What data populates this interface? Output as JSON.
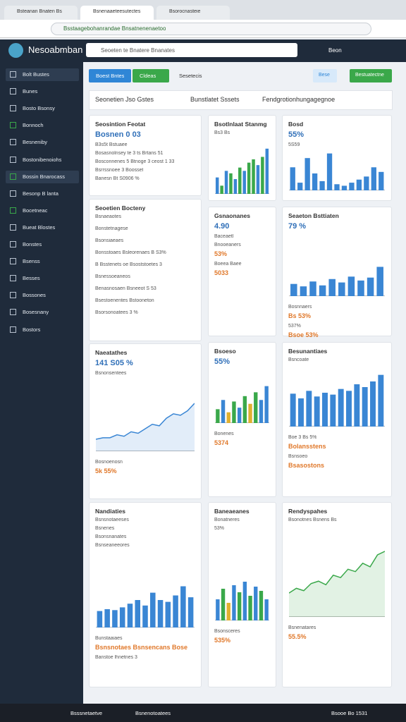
{
  "browser": {
    "tabs": [
      "Bsteanan Bnaten Bs",
      "Bsnenaaeteesutectes",
      "Bsorocnasteie"
    ],
    "url": "Bsstaagebohanrandae Bnsatnenenaetoo"
  },
  "header": {
    "brand": "Nesoabmban",
    "search": "Seoeten te Bnatere Bnanates",
    "user": "Beon"
  },
  "sidebar": [
    "Bolt Bustes",
    "Bunes",
    "Bosto Bsonsy",
    "Bonnoch",
    "Besneniby",
    "Bostonibenoiohs",
    "Bossin Bnarocass",
    "Besonp B lanta",
    "Bocetneac",
    "Bueat Blostes",
    "Bonstes",
    "Bsenss",
    "Besses",
    "Bossones",
    "Bosesnany",
    "Bostors"
  ],
  "toolbar": {
    "buttons": [
      "Boest Bntes",
      "Cldeas"
    ],
    "link": "Sesetecis",
    "right": [
      "Bese",
      "Bestuatectne"
    ]
  },
  "tabs": [
    "Seonetien Jso Gstes",
    "Bunstlatet Sssets",
    "Fendgrotionhungagegnoe"
  ],
  "cards": [
    {
      "title": "Seosintion Feotat",
      "value": "Bosnen 0 03",
      "lines": [
        "B3s5t  Bstuaee",
        "Bosasnolnsey te 3 ts Brtans 51",
        "Bosconnenes 5 Btnoge 3 ceost 1 33",
        "Bsrrssnoee 3 Boosset",
        "Banesn Bt S0906 %"
      ]
    },
    {
      "title": "Seoetien Bocteny",
      "lines": [
        "Bsnaeaotes",
        "Bonstetnagese",
        "Bsonsiaeaes",
        "Bonsstoaes Bsleorenaes B S3%",
        "B Bsstenets oe Bsoststoetes 3",
        "Bsnessoeaneos",
        "Benasnosaen Bsneeot S 53",
        "Bsestoenentes Bstooneton",
        "Bsorsonoatees 3 %"
      ]
    },
    {
      "title": "Naeatathes",
      "value": "141 S05 %",
      "lines": [
        "Bsnonsentees"
      ],
      "chart": {
        "type": "line",
        "values": [
          8,
          9,
          9,
          11,
          10,
          13,
          12,
          15,
          18,
          17,
          22,
          25,
          24,
          27,
          32
        ],
        "ylim": [
          0,
          40
        ],
        "color": "#3a86d4"
      },
      "footer": [
        "Bosnoenosn",
        "5k 55%"
      ]
    },
    {
      "title": "Nandiaties",
      "lines": [
        "Bsnsnotaeeses",
        "Bsnenes",
        "Bsonsnanates",
        "Bsnseaneeores"
      ],
      "chart": {
        "type": "bar",
        "values": [
          18,
          20,
          19,
          22,
          26,
          30,
          24,
          38,
          30,
          28,
          35,
          45,
          33
        ],
        "ylim": [
          0,
          50
        ],
        "color": "#3a86d4"
      },
      "footer": [
        "Bunstaaiaes",
        "Bsnsnotaes Bsnsencans Bose",
        "Banstoe lhnetnes 3"
      ]
    },
    {
      "title": "Bsotlnlaat Stanmg",
      "lines": [
        "Bs3 Bs"
      ],
      "chart": {
        "type": "bar",
        "values": [
          20,
          10,
          28,
          25,
          18,
          32,
          28,
          38,
          42,
          35,
          45,
          55
        ],
        "ylim": [
          0,
          60
        ],
        "colors": [
          "#3a86d4",
          "#3aa84a",
          "#3a86d4",
          "#3aa84a",
          "#3a86d4",
          "#3aa84a",
          "#3a86d4",
          "#3aa84a",
          "#3aa84a",
          "#3a86d4",
          "#3aa84a",
          "#3a86d4"
        ]
      }
    },
    {
      "title": "Gsnaonanes",
      "value": "4.90",
      "lines": [
        "Baceaetl"
      ],
      "footer": [
        "Bnooeaners",
        "53%",
        "Boeea Baee",
        "5033"
      ]
    },
    {
      "title": "Bsoeso",
      "value": "55%",
      "chart": {
        "type": "bar",
        "values": [
          18,
          30,
          14,
          28,
          20,
          35,
          25,
          40,
          30,
          48
        ],
        "ylim": [
          0,
          55
        ],
        "colors": [
          "#3aa84a",
          "#3a86d4",
          "#e0b030",
          "#3aa84a",
          "#3a86d4",
          "#3aa84a",
          "#e0b030",
          "#3aa84a",
          "#3a86d4",
          "#3a86d4"
        ]
      },
      "footer": [
        "Bonenes",
        "5374"
      ]
    },
    {
      "title": "Baneaeanes",
      "lines": [
        "Bonatneres",
        "53%"
      ],
      "chart": {
        "type": "bar",
        "values": [
          30,
          45,
          25,
          50,
          40,
          55,
          35,
          48,
          42,
          30
        ],
        "ylim": [
          0,
          60
        ],
        "colors": [
          "#3a86d4",
          "#3aa84a",
          "#e0b030",
          "#3a86d4",
          "#3aa84a",
          "#3a86d4",
          "#3aa84a",
          "#3a86d4",
          "#3aa84a",
          "#3a86d4"
        ]
      },
      "footer": [
        "Bsonsceres",
        "535%"
      ]
    },
    {
      "title": "Bosd",
      "value": "55%",
      "lines": [
        "5S59"
      ],
      "chart": {
        "type": "bar",
        "values": [
          30,
          10,
          42,
          22,
          12,
          48,
          8,
          6,
          10,
          14,
          18,
          30,
          24
        ],
        "ylim": [
          0,
          55
        ],
        "color": "#3a86d4"
      }
    },
    {
      "title": "Seaeton Bsttiaten",
      "value": "79 %",
      "chart": {
        "type": "bar",
        "values": [
          25,
          20,
          30,
          22,
          35,
          28,
          40,
          32,
          38,
          60
        ],
        "ylim": [
          0,
          65
        ],
        "color": "#3a86d4"
      },
      "footer": [
        "Bosnnaers",
        "Bs 53%",
        "537%",
        "Bsoe 53%"
      ]
    },
    {
      "title": "Besunantiaes",
      "lines": [
        "Bsncoate"
      ],
      "chart": {
        "type": "bar",
        "values": [
          35,
          30,
          38,
          32,
          36,
          34,
          40,
          38,
          45,
          42,
          48,
          55
        ],
        "ylim": [
          0,
          60
        ],
        "color": "#3a86d4"
      },
      "footer": [
        "Boe 3 Bs 5%",
        "Bolansstens",
        "Bsnsoeo",
        "Bsasostons"
      ]
    },
    {
      "title": "Rendyspahes",
      "lines": [
        "Bsonotnes Bsnens Bs"
      ],
      "chart": {
        "type": "line",
        "values": [
          20,
          24,
          22,
          28,
          30,
          27,
          35,
          33,
          40,
          38,
          45,
          42,
          52,
          55
        ],
        "ylim": [
          0,
          65
        ],
        "color": "#3aa84a"
      },
      "footer": [
        "Bsnenatares",
        "55.5%"
      ]
    }
  ],
  "taskbar": {
    "apps": [
      "Bsssnetaetve",
      "Bsnenotoatees"
    ],
    "clock": "Bsooe Bo 1531"
  }
}
